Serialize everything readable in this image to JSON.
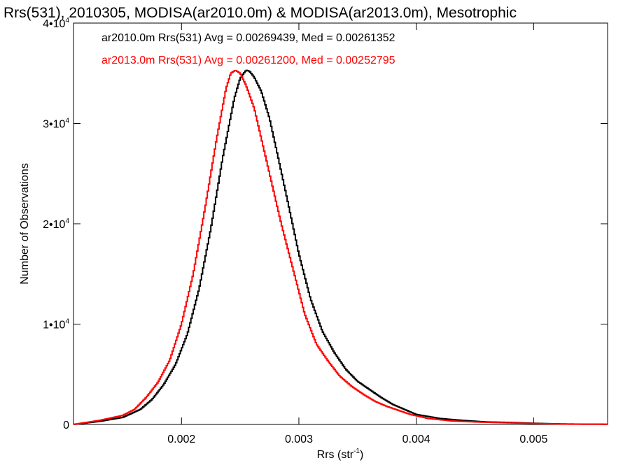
{
  "chart_data": {
    "type": "line",
    "title": "Rrs(531), 2010305, MODISA(ar2010.0m) & MODISA(ar2013.0m), Mesotrophic",
    "xlabel": {
      "base": "Rrs (str",
      "sup": "-1",
      "close": ")"
    },
    "ylabel": "Number of Observations",
    "xlim": [
      0.00108,
      0.00563
    ],
    "ylim": [
      0,
      40000
    ],
    "x_ticks": [
      {
        "value": 0.002,
        "label": "0.002"
      },
      {
        "value": 0.003,
        "label": "0.003"
      },
      {
        "value": 0.004,
        "label": "0.004"
      },
      {
        "value": 0.005,
        "label": "0.005"
      }
    ],
    "y_ticks": [
      {
        "value": 0,
        "mant": "0",
        "exp": ""
      },
      {
        "value": 10000,
        "mant": "1•10",
        "exp": "4"
      },
      {
        "value": 20000,
        "mant": "2•10",
        "exp": "4"
      },
      {
        "value": 30000,
        "mant": "3•10",
        "exp": "4"
      },
      {
        "value": 40000,
        "mant": "4•10",
        "exp": "4"
      }
    ],
    "grid": false,
    "legend_position": "top-left",
    "series": [
      {
        "label": "ar2010.0m Rrs(531) Avg = 0.00269439, Med = 0.00261352",
        "color": "#000000",
        "points": [
          [
            0.00108,
            0
          ],
          [
            0.0013,
            300
          ],
          [
            0.0015,
            700
          ],
          [
            0.00165,
            1500
          ],
          [
            0.00175,
            2500
          ],
          [
            0.00185,
            4000
          ],
          [
            0.00195,
            6000
          ],
          [
            0.00205,
            9000
          ],
          [
            0.00215,
            13500
          ],
          [
            0.00225,
            19500
          ],
          [
            0.00235,
            26500
          ],
          [
            0.00245,
            32500
          ],
          [
            0.0025,
            34500
          ],
          [
            0.00255,
            35300
          ],
          [
            0.00258,
            35200
          ],
          [
            0.00262,
            34600
          ],
          [
            0.00268,
            33200
          ],
          [
            0.00275,
            30500
          ],
          [
            0.00282,
            26800
          ],
          [
            0.0029,
            22500
          ],
          [
            0.003,
            17000
          ],
          [
            0.0031,
            12500
          ],
          [
            0.0032,
            9300
          ],
          [
            0.0033,
            7200
          ],
          [
            0.0034,
            5500
          ],
          [
            0.0035,
            4300
          ],
          [
            0.0036,
            3500
          ],
          [
            0.0037,
            2700
          ],
          [
            0.0038,
            2000
          ],
          [
            0.0039,
            1500
          ],
          [
            0.004,
            1000
          ],
          [
            0.0042,
            600
          ],
          [
            0.0044,
            400
          ],
          [
            0.0046,
            250
          ],
          [
            0.0048,
            200
          ],
          [
            0.005,
            120
          ],
          [
            0.0052,
            60
          ],
          [
            0.0054,
            30
          ],
          [
            0.00563,
            20
          ]
        ]
      },
      {
        "label": "ar2013.0m Rrs(531) Avg = 0.00261200, Med = 0.00252795",
        "color": "#ff0000",
        "points": [
          [
            0.00108,
            0
          ],
          [
            0.0013,
            400
          ],
          [
            0.0015,
            900
          ],
          [
            0.0016,
            1500
          ],
          [
            0.0017,
            2700
          ],
          [
            0.0018,
            4200
          ],
          [
            0.0019,
            6400
          ],
          [
            0.002,
            10000
          ],
          [
            0.0021,
            15000
          ],
          [
            0.0022,
            21500
          ],
          [
            0.0023,
            28500
          ],
          [
            0.00238,
            33500
          ],
          [
            0.00242,
            35000
          ],
          [
            0.00246,
            35300
          ],
          [
            0.0025,
            35000
          ],
          [
            0.00255,
            33800
          ],
          [
            0.00262,
            31500
          ],
          [
            0.0027,
            27500
          ],
          [
            0.00278,
            23500
          ],
          [
            0.00285,
            20000
          ],
          [
            0.00295,
            15500
          ],
          [
            0.00305,
            11000
          ],
          [
            0.00315,
            8000
          ],
          [
            0.00325,
            6300
          ],
          [
            0.00335,
            4800
          ],
          [
            0.00345,
            3800
          ],
          [
            0.00355,
            3000
          ],
          [
            0.00365,
            2300
          ],
          [
            0.00375,
            1800
          ],
          [
            0.00385,
            1400
          ],
          [
            0.00395,
            1000
          ],
          [
            0.0041,
            600
          ],
          [
            0.0043,
            350
          ],
          [
            0.0045,
            250
          ],
          [
            0.0047,
            180
          ],
          [
            0.0049,
            130
          ],
          [
            0.0051,
            70
          ],
          [
            0.0053,
            30
          ],
          [
            0.00563,
            20
          ]
        ]
      }
    ]
  }
}
